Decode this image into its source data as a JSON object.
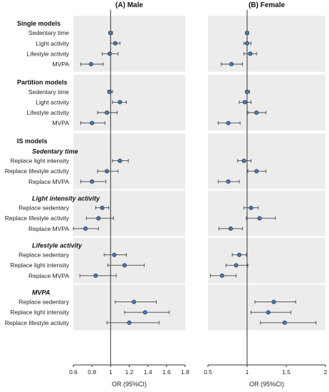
{
  "chart_data": {
    "type": "forest",
    "panels": [
      {
        "title": "(A) Male",
        "xlim": [
          0.6,
          1.8
        ],
        "ticks": [
          "0.6",
          "0.8",
          "1",
          "1.2",
          "1.4",
          "1.6",
          "1.8"
        ],
        "xlabel": "OR (95%CI)"
      },
      {
        "title": "(B) Female",
        "xlim": [
          0.5,
          2.0
        ],
        "ticks": [
          "0.5",
          "1",
          "1.5",
          "2"
        ],
        "xlabel": "OR (95%CI)"
      }
    ],
    "reference_line": 1,
    "groups": [
      {
        "title": "Single models",
        "title_style": "bold",
        "subgroups": [
          {
            "subtitle": "",
            "rows": [
              {
                "label": "Sedentary time",
                "male": [
                  1.0,
                  0.98,
                  1.02
                ],
                "female": [
                  1.0,
                  0.98,
                  1.02
                ]
              },
              {
                "label": "Light activity",
                "male": [
                  1.05,
                  1.0,
                  1.1
                ],
                "female": [
                  1.0,
                  0.96,
                  1.05
                ]
              },
              {
                "label": "Lifestyle activity",
                "male": [
                  0.99,
                  0.91,
                  1.08
                ],
                "female": [
                  1.04,
                  0.96,
                  1.12
                ]
              },
              {
                "label": "MVPA",
                "male": [
                  0.79,
                  0.68,
                  0.92
                ],
                "female": [
                  0.8,
                  0.67,
                  0.94
                ]
              }
            ]
          }
        ]
      },
      {
        "title": "Partition models",
        "title_style": "bold",
        "subgroups": [
          {
            "subtitle": "",
            "rows": [
              {
                "label": "Sedentary time",
                "male": [
                  0.99,
                  0.97,
                  1.02
                ],
                "female": [
                  1.0,
                  0.98,
                  1.03
                ]
              },
              {
                "label": "Light activity",
                "male": [
                  1.1,
                  1.02,
                  1.17
                ],
                "female": [
                  0.97,
                  0.9,
                  1.05
                ]
              },
              {
                "label": "Lifestyle activity",
                "male": [
                  0.96,
                  0.86,
                  1.07
                ],
                "female": [
                  1.12,
                  1.01,
                  1.24
                ]
              },
              {
                "label": "MVPA",
                "male": [
                  0.8,
                  0.68,
                  0.94
                ],
                "female": [
                  0.76,
                  0.63,
                  0.91
                ]
              }
            ]
          }
        ]
      },
      {
        "title": "IS models",
        "title_style": "bold",
        "subgroups": [
          {
            "subtitle": "Sedentary time",
            "rows": [
              {
                "label": "Replace light intensity",
                "male": [
                  1.1,
                  1.02,
                  1.19
                ],
                "female": [
                  0.96,
                  0.88,
                  1.05
                ]
              },
              {
                "label": "Replace lifestyle activity",
                "male": [
                  0.96,
                  0.86,
                  1.08
                ],
                "female": [
                  1.12,
                  1.01,
                  1.24
                ]
              },
              {
                "label": "Replace MVPA",
                "male": [
                  0.8,
                  0.68,
                  0.95
                ],
                "female": [
                  0.76,
                  0.63,
                  0.9
                ]
              }
            ]
          },
          {
            "subtitle": "Light intensity activity",
            "rows": [
              {
                "label": "Replace sedentary",
                "male": [
                  0.91,
                  0.84,
                  0.98
                ],
                "female": [
                  1.05,
                  0.96,
                  1.14
                ]
              },
              {
                "label": "Replace lifestyle activity",
                "male": [
                  0.87,
                  0.74,
                  1.03
                ],
                "female": [
                  1.16,
                  0.99,
                  1.36
                ]
              },
              {
                "label": "Replace MVPA",
                "male": [
                  0.73,
                  0.6,
                  0.87
                ],
                "female": [
                  0.79,
                  0.64,
                  0.94
                ]
              }
            ]
          },
          {
            "subtitle": "Lifestyle activity",
            "rows": [
              {
                "label": "Replace sedentary",
                "male": [
                  1.04,
                  0.93,
                  1.17
                ],
                "female": [
                  0.9,
                  0.81,
                  0.99
                ]
              },
              {
                "label": "Replace light intensity",
                "male": [
                  1.15,
                  0.97,
                  1.36
                ],
                "female": [
                  0.86,
                  0.73,
                  1.01
                ]
              },
              {
                "label": "Replace MVPA",
                "male": [
                  0.84,
                  0.67,
                  1.06
                ],
                "female": [
                  0.68,
                  0.53,
                  0.86
                ]
              }
            ]
          },
          {
            "subtitle": "MVPA",
            "rows": [
              {
                "label": "Replace sedentary",
                "male": [
                  1.25,
                  1.05,
                  1.49
                ],
                "female": [
                  1.34,
                  1.1,
                  1.62
                ]
              },
              {
                "label": "Replace light intensity",
                "male": [
                  1.37,
                  1.15,
                  1.63
                ],
                "female": [
                  1.27,
                  1.05,
                  1.56
                ]
              },
              {
                "label": "Replace lifestyle activity",
                "male": [
                  1.2,
                  0.96,
                  1.52
                ],
                "female": [
                  1.48,
                  1.17,
                  1.88
                ]
              }
            ]
          }
        ]
      }
    ],
    "colors": {
      "marker_fill": "#4a7bb7",
      "marker_stroke": "#1f3a5f",
      "ci_line": "#444444",
      "panel_bg": "#ececec",
      "reference_line": "#333333"
    }
  }
}
